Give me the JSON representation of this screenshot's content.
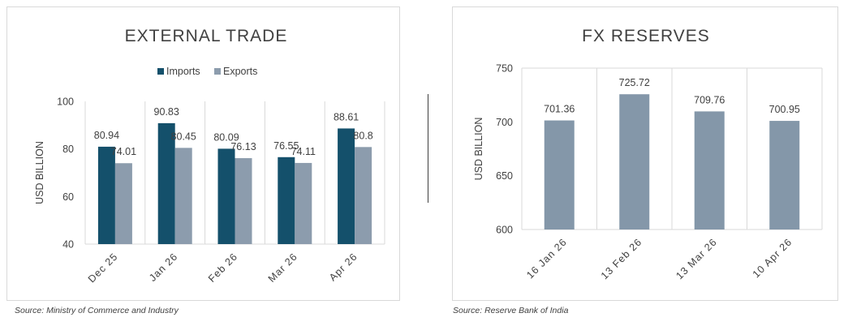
{
  "colors": {
    "imports": "#14506b",
    "exports": "#8c9cad",
    "reserves": "#8497a9",
    "grid": "#d9d9d9",
    "text": "#404040"
  },
  "chart_data": [
    {
      "type": "bar",
      "title": "EXTERNAL TRADE",
      "ylabel": "USD BILLION",
      "xlabel": "",
      "categories": [
        "Dec 25",
        "Jan 26",
        "Feb 26",
        "Mar 26",
        "Apr 26"
      ],
      "series": [
        {
          "name": "Imports",
          "values": [
            80.94,
            90.83,
            80.09,
            76.55,
            88.61
          ]
        },
        {
          "name": "Exports",
          "values": [
            74.01,
            80.45,
            76.13,
            74.11,
            80.8
          ]
        }
      ],
      "ylim": [
        40,
        100
      ],
      "yticks": [
        40,
        60,
        80,
        100
      ],
      "legend": "top-center",
      "grid": "vertical category separators",
      "source": "Source: Ministry of Commerce and Industry"
    },
    {
      "type": "bar",
      "title": "FX RESERVES",
      "ylabel": "USD BILLION",
      "xlabel": "",
      "categories": [
        "16 Jan 26",
        "13 Feb 26",
        "13 Mar 26",
        "10 Apr 26"
      ],
      "series": [
        {
          "name": "",
          "values": [
            701.36,
            725.72,
            709.76,
            700.95
          ]
        }
      ],
      "ylim": [
        600,
        750
      ],
      "yticks": [
        600,
        650,
        700,
        750
      ],
      "legend": "none",
      "grid": "vertical category separators",
      "source": "Source: Reserve Bank of India"
    }
  ]
}
